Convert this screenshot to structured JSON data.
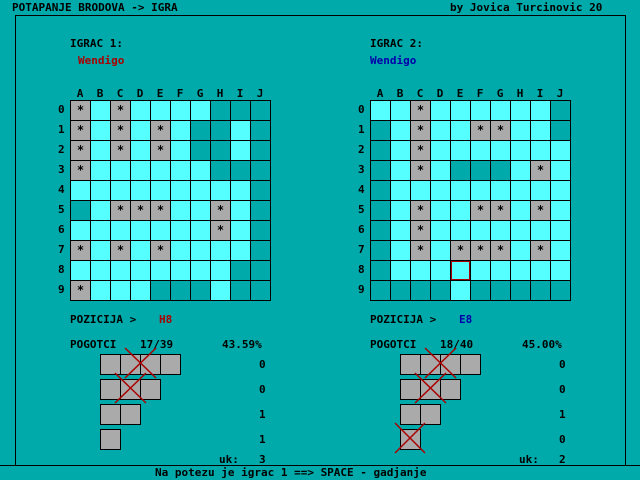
{
  "header": {
    "title": "POTAPANJE BRODOVA -> IGRA",
    "author": "by Jovica Turcinovic 20"
  },
  "columns": [
    "A",
    "B",
    "C",
    "D",
    "E",
    "F",
    "G",
    "H",
    "I",
    "J"
  ],
  "rows": [
    "0",
    "1",
    "2",
    "3",
    "4",
    "5",
    "6",
    "7",
    "8",
    "9"
  ],
  "colors": {
    "light": "#55FFFF",
    "dark": "#00AAAA",
    "hit": "#AAAAAA",
    "p1": "#AA0000",
    "p2": "#0000AA"
  },
  "players": [
    {
      "label": "IGRAC 1:",
      "name": "Wendigo",
      "pos_label": "POZICIJA >",
      "pos": "H8",
      "hits_label": "POGOTCI",
      "hits": "17/39",
      "pct": "43.59%",
      "ships_left": [
        "0",
        "0",
        "1",
        "1"
      ],
      "ships_sunk": [
        1,
        1,
        0,
        0
      ],
      "total_label": "uk:",
      "total": "3",
      "grid": [
        "XLXLLLLDDD",
        "XLXLXLDDLD",
        "XLXLXLDDLD",
        "XLLLLLLDDD",
        "LLLLLLLLLD",
        "DLXXXLLXLD",
        "LLLLLLLXLD",
        "XLXLXLLLLD",
        "LLLLLLLLDD",
        "XLLLDDDLDD"
      ],
      "cursor": null
    },
    {
      "label": "IGRAC 2:",
      "name": "Wendigo",
      "pos_label": "POZICIJA >",
      "pos": "E8",
      "hits_label": "POGOTCI",
      "hits": "18/40",
      "pct": "45.00%",
      "ships_left": [
        "0",
        "0",
        "1",
        "0"
      ],
      "ships_sunk": [
        1,
        1,
        0,
        1
      ],
      "total_label": "uk:",
      "total": "2",
      "grid": [
        "LLXLLLLLLD",
        "DLXLLXXLLD",
        "DLXLLLLLLL",
        "DLXLDDDLXL",
        "DLLLLLLLLL",
        "DLXLLXXLXL",
        "DLXLLLLLLL",
        "DLXLXXXLXL",
        "DLLLLLLLLL",
        "DDDDLDDDDD"
      ],
      "cursor": "E8"
    }
  ],
  "status": "Na potezu je igrac 1 ==> SPACE - gadjanje"
}
